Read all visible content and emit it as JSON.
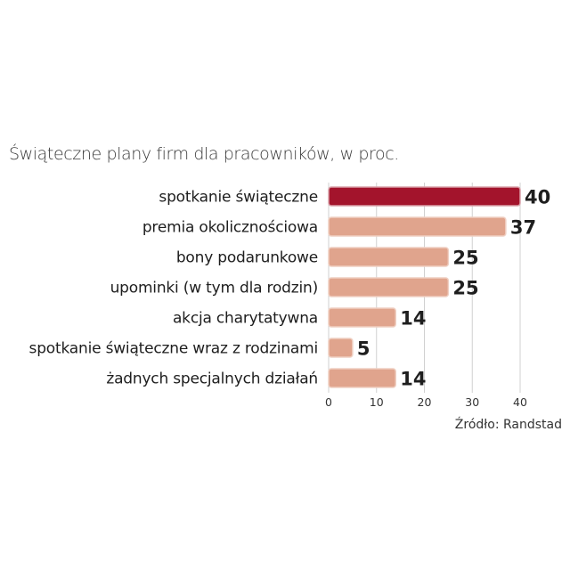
{
  "colors": {
    "highlight_bar": "#a3142c",
    "highlight_bar_border": "#d9a0a8",
    "bar": "#e0a48d",
    "bar_border": "#efcfc2",
    "grid": "#d0d0d0"
  },
  "source": "Źródło: Randstad",
  "chart_data": {
    "type": "bar",
    "orientation": "horizontal",
    "title": "Świąteczne plany firm dla pracowników, w proc.",
    "categories": [
      "spotkanie świąteczne",
      "premia okolicznościowa",
      "bony podarunkowe",
      "upominki (w tym dla rodzin)",
      "akcja charytatywna",
      "spotkanie świąteczne wraz z rodzinami",
      "żadnych specjalnych działań"
    ],
    "values": [
      40,
      37,
      25,
      25,
      14,
      5,
      14
    ],
    "highlight_index": 0,
    "xlim": [
      0,
      40
    ],
    "xticks": [
      0,
      10,
      20,
      30,
      40
    ],
    "grid": true,
    "xlabel": "",
    "ylabel": ""
  }
}
